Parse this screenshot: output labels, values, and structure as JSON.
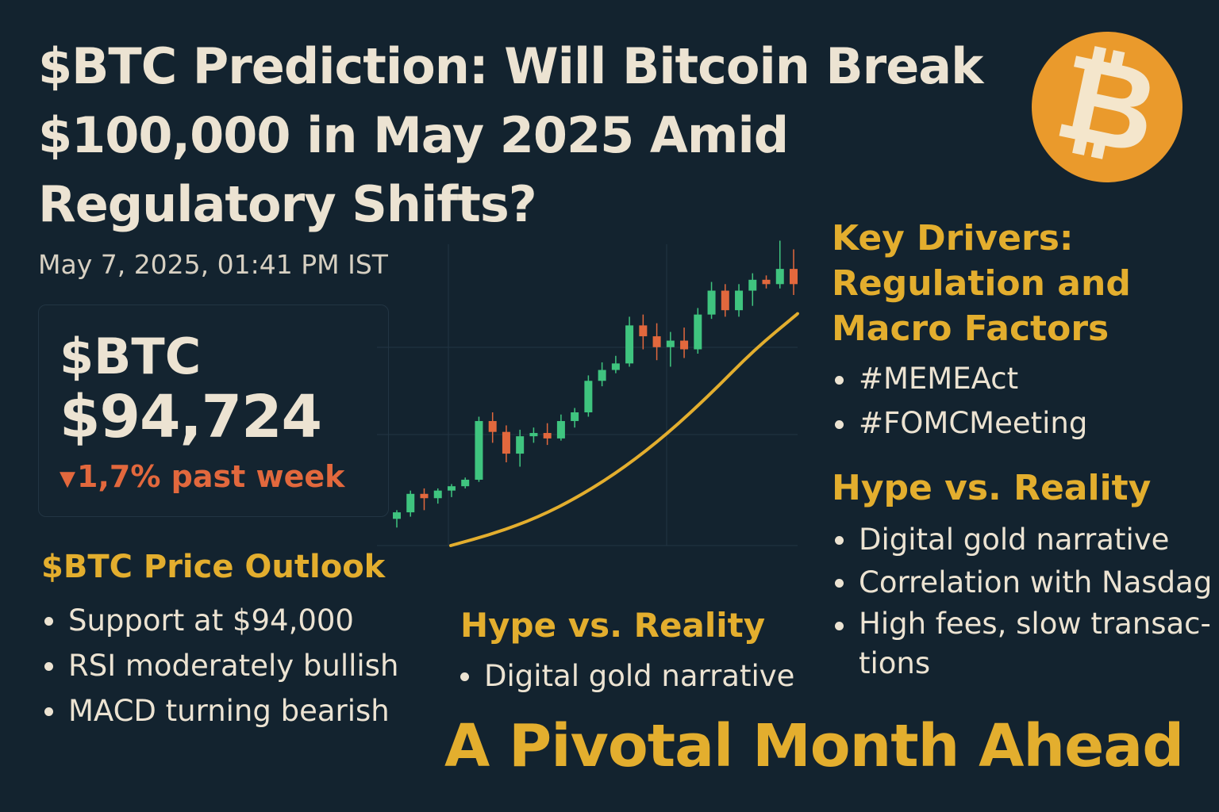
{
  "header": {
    "title_lines": [
      "$BTC Prediction: Will Bitcoin Break",
      "$100,000 in May 2025 Amid",
      "Regulatory Shifts?"
    ],
    "timestamp": "May 7, 2025, 01:41 PM IST",
    "logo_icon": "bitcoin-logo-icon",
    "logo_color": "#ea9a2c"
  },
  "price_card": {
    "ticker": "$BTC",
    "price": "$94,724",
    "change_arrow": "▼",
    "change_text": "1,7% past week",
    "change_color": "#e2683d"
  },
  "outlook": {
    "heading": "$BTC Price Outlook",
    "items": [
      "Support at $94,000",
      "RSI moderately bullish",
      "MACD turning bearish"
    ]
  },
  "hype_middle": {
    "heading": "Hype vs. Reality",
    "items": [
      "Digital gold narrative"
    ]
  },
  "drivers": {
    "heading_lines": [
      "Key Drivers:",
      "Regulation and",
      "Macro Factors"
    ],
    "items": [
      "#MEMEAct",
      "#FOMCMeeting"
    ]
  },
  "hype_right": {
    "heading": "Hype vs. Reality",
    "items": [
      "Digital gold narrative",
      "Correlation with Nasdag",
      "High fees, slow transac-",
      "tions"
    ]
  },
  "tagline": "A Pivotal Month Ahead",
  "colors": {
    "accent": "#e3ae2e",
    "up": "#3fc47f",
    "down": "#e2683d",
    "background": "#13232f"
  },
  "chart_data": {
    "type": "candlestick",
    "candles": [
      {
        "o": 10,
        "h": 18,
        "l": 2,
        "c": 16
      },
      {
        "o": 16,
        "h": 36,
        "l": 12,
        "c": 33
      },
      {
        "o": 33,
        "h": 38,
        "l": 18,
        "c": 29
      },
      {
        "o": 29,
        "h": 38,
        "l": 24,
        "c": 36
      },
      {
        "o": 36,
        "h": 42,
        "l": 30,
        "c": 40
      },
      {
        "o": 40,
        "h": 48,
        "l": 38,
        "c": 46
      },
      {
        "o": 46,
        "h": 104,
        "l": 44,
        "c": 100
      },
      {
        "o": 100,
        "h": 108,
        "l": 80,
        "c": 90
      },
      {
        "o": 90,
        "h": 96,
        "l": 62,
        "c": 70
      },
      {
        "o": 70,
        "h": 92,
        "l": 58,
        "c": 86
      },
      {
        "o": 86,
        "h": 94,
        "l": 80,
        "c": 89
      },
      {
        "o": 89,
        "h": 98,
        "l": 78,
        "c": 84
      },
      {
        "o": 84,
        "h": 106,
        "l": 82,
        "c": 100
      },
      {
        "o": 100,
        "h": 112,
        "l": 94,
        "c": 108
      },
      {
        "o": 108,
        "h": 142,
        "l": 104,
        "c": 137
      },
      {
        "o": 137,
        "h": 154,
        "l": 132,
        "c": 147
      },
      {
        "o": 147,
        "h": 160,
        "l": 144,
        "c": 153
      },
      {
        "o": 153,
        "h": 196,
        "l": 150,
        "c": 188
      },
      {
        "o": 188,
        "h": 198,
        "l": 166,
        "c": 178
      },
      {
        "o": 178,
        "h": 190,
        "l": 156,
        "c": 168
      },
      {
        "o": 168,
        "h": 182,
        "l": 150,
        "c": 174
      },
      {
        "o": 174,
        "h": 186,
        "l": 158,
        "c": 166
      },
      {
        "o": 166,
        "h": 204,
        "l": 162,
        "c": 198
      },
      {
        "o": 198,
        "h": 228,
        "l": 194,
        "c": 220
      },
      {
        "o": 220,
        "h": 226,
        "l": 196,
        "c": 202
      },
      {
        "o": 202,
        "h": 226,
        "l": 196,
        "c": 220
      },
      {
        "o": 220,
        "h": 236,
        "l": 206,
        "c": 230
      },
      {
        "o": 230,
        "h": 234,
        "l": 222,
        "c": 226
      },
      {
        "o": 226,
        "h": 266,
        "l": 222,
        "c": 240
      },
      {
        "o": 240,
        "h": 258,
        "l": 216,
        "c": 226
      }
    ],
    "trend": [
      0,
      12,
      28,
      50,
      78,
      112,
      152,
      196,
      232
    ],
    "ylim": [
      0,
      270
    ],
    "grid": true
  }
}
